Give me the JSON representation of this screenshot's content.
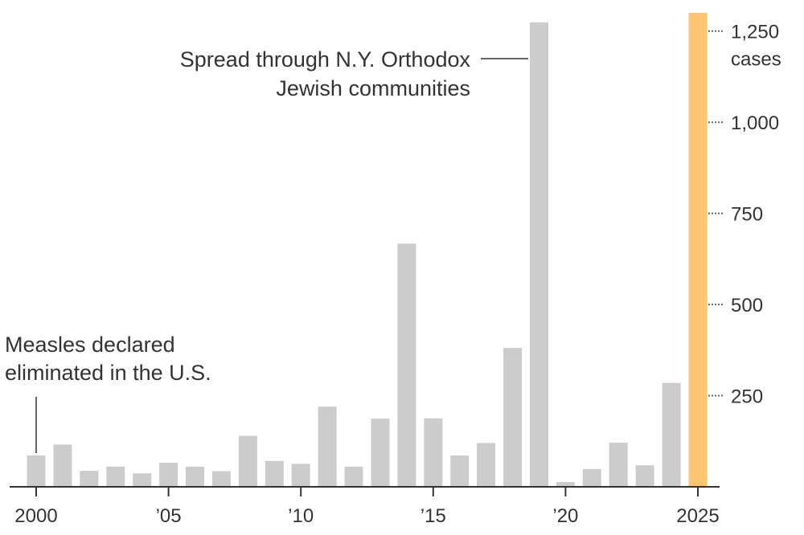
{
  "chart_data": {
    "type": "bar",
    "title": "",
    "xlabel": "",
    "ylabel": "",
    "x": [
      2000,
      2001,
      2002,
      2003,
      2004,
      2005,
      2006,
      2007,
      2008,
      2009,
      2010,
      2011,
      2012,
      2013,
      2014,
      2015,
      2016,
      2017,
      2018,
      2019,
      2020,
      2021,
      2022,
      2023,
      2024,
      2025
    ],
    "values": [
      86,
      116,
      44,
      55,
      37,
      66,
      55,
      43,
      140,
      71,
      63,
      220,
      55,
      187,
      667,
      188,
      86,
      120,
      381,
      1274,
      13,
      49,
      121,
      59,
      285,
      1300
    ],
    "highlight_year": 2025,
    "highlight_color": "#fdc473",
    "bar_color": "#cccccc",
    "ylim": [
      0,
      1300
    ],
    "y_ticks": [
      250,
      500,
      750,
      1000,
      1250
    ],
    "y_tick_labels": [
      "250",
      "500",
      "750",
      "1,000",
      "1,250"
    ],
    "y_unit_label": "cases",
    "x_ticks": [
      2000,
      2005,
      2010,
      2015,
      2020,
      2025
    ],
    "x_tick_labels": [
      "2000",
      "’05",
      "’10",
      "’15",
      "’20",
      "2025"
    ],
    "grid": false,
    "annotations": [
      {
        "year": 2000,
        "lines": [
          "Measles declared",
          "eliminated in the U.S."
        ]
      },
      {
        "year": 2019,
        "lines": [
          "Spread through N.Y. Orthodox",
          "Jewish communities"
        ]
      }
    ]
  }
}
